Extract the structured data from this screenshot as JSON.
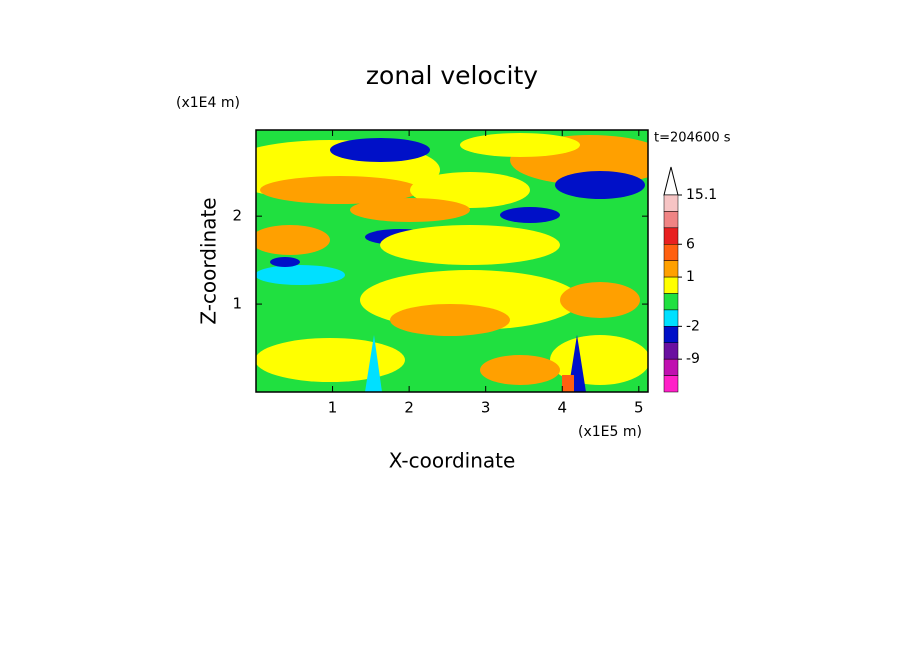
{
  "chart_data": {
    "type": "contour",
    "title": "zonal velocity",
    "x_label": "X-coordinate",
    "y_label": "Z-coordinate",
    "x_unit": "(x1E5 m)",
    "y_unit": "(x1E4 m)",
    "annotation": "t=204600 s",
    "xlim": [
      0,
      5.12
    ],
    "xticks": [
      1,
      2,
      3,
      4,
      5
    ],
    "ylim": [
      0,
      2.98
    ],
    "yticks": [
      1,
      2
    ],
    "colorbar": {
      "boundaries": [
        15.1,
        12,
        9,
        6,
        3,
        1,
        0,
        -1,
        -2,
        -5,
        -9,
        -12,
        -15.1
      ],
      "colors": [
        "#f6c4c4",
        "#f08484",
        "#e82020",
        "#ff6010",
        "#ffa000",
        "#ffff00",
        "#20e040",
        "#00e0ff",
        "#0010c8",
        "#6a10a0",
        "#c010b0",
        "#ff20c8"
      ],
      "ticks": [
        15.1,
        6,
        1,
        -2,
        -9
      ]
    }
  }
}
